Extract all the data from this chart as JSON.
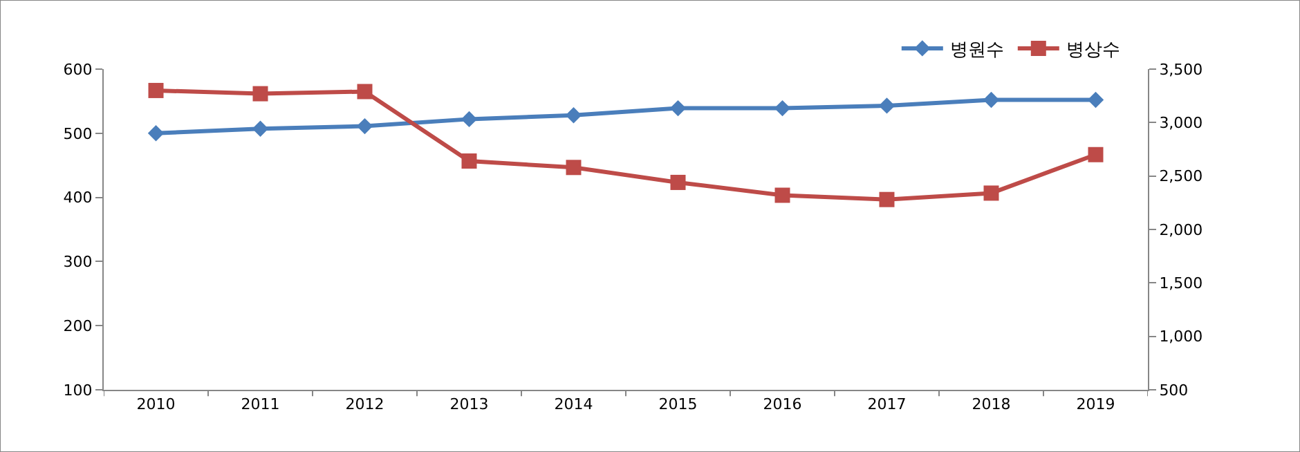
{
  "chart_data": {
    "type": "line",
    "categories": [
      "2010",
      "2011",
      "2012",
      "2013",
      "2014",
      "2015",
      "2016",
      "2017",
      "2018",
      "2019"
    ],
    "series": [
      {
        "name": "병원수",
        "color": "#4a7ebb",
        "marker": "diamond",
        "values": [
          500,
          507,
          511,
          522,
          528,
          539,
          539,
          543,
          552,
          552
        ]
      },
      {
        "name": "병상수",
        "color": "#be4b48",
        "marker": "square",
        "axis": "y2",
        "values": [
          3300,
          3270,
          3290,
          2640,
          2580,
          2440,
          2320,
          2280,
          2340,
          2700
        ]
      }
    ],
    "ylim": [
      100,
      600
    ],
    "yticks": [
      100,
      200,
      300,
      400,
      500,
      600
    ],
    "y2lim": [
      500,
      3500
    ],
    "y2ticks": [
      {
        "value": 500,
        "label": "500"
      },
      {
        "value": 1000,
        "label": "1,000"
      },
      {
        "value": 1500,
        "label": "1,500"
      },
      {
        "value": 2000,
        "label": "2,000"
      },
      {
        "value": 2500,
        "label": "2,500"
      },
      {
        "value": 3000,
        "label": "3,000"
      },
      {
        "value": 3500,
        "label": "3,500"
      }
    ],
    "grid": false,
    "legend": "top right",
    "line_style": "solid"
  }
}
